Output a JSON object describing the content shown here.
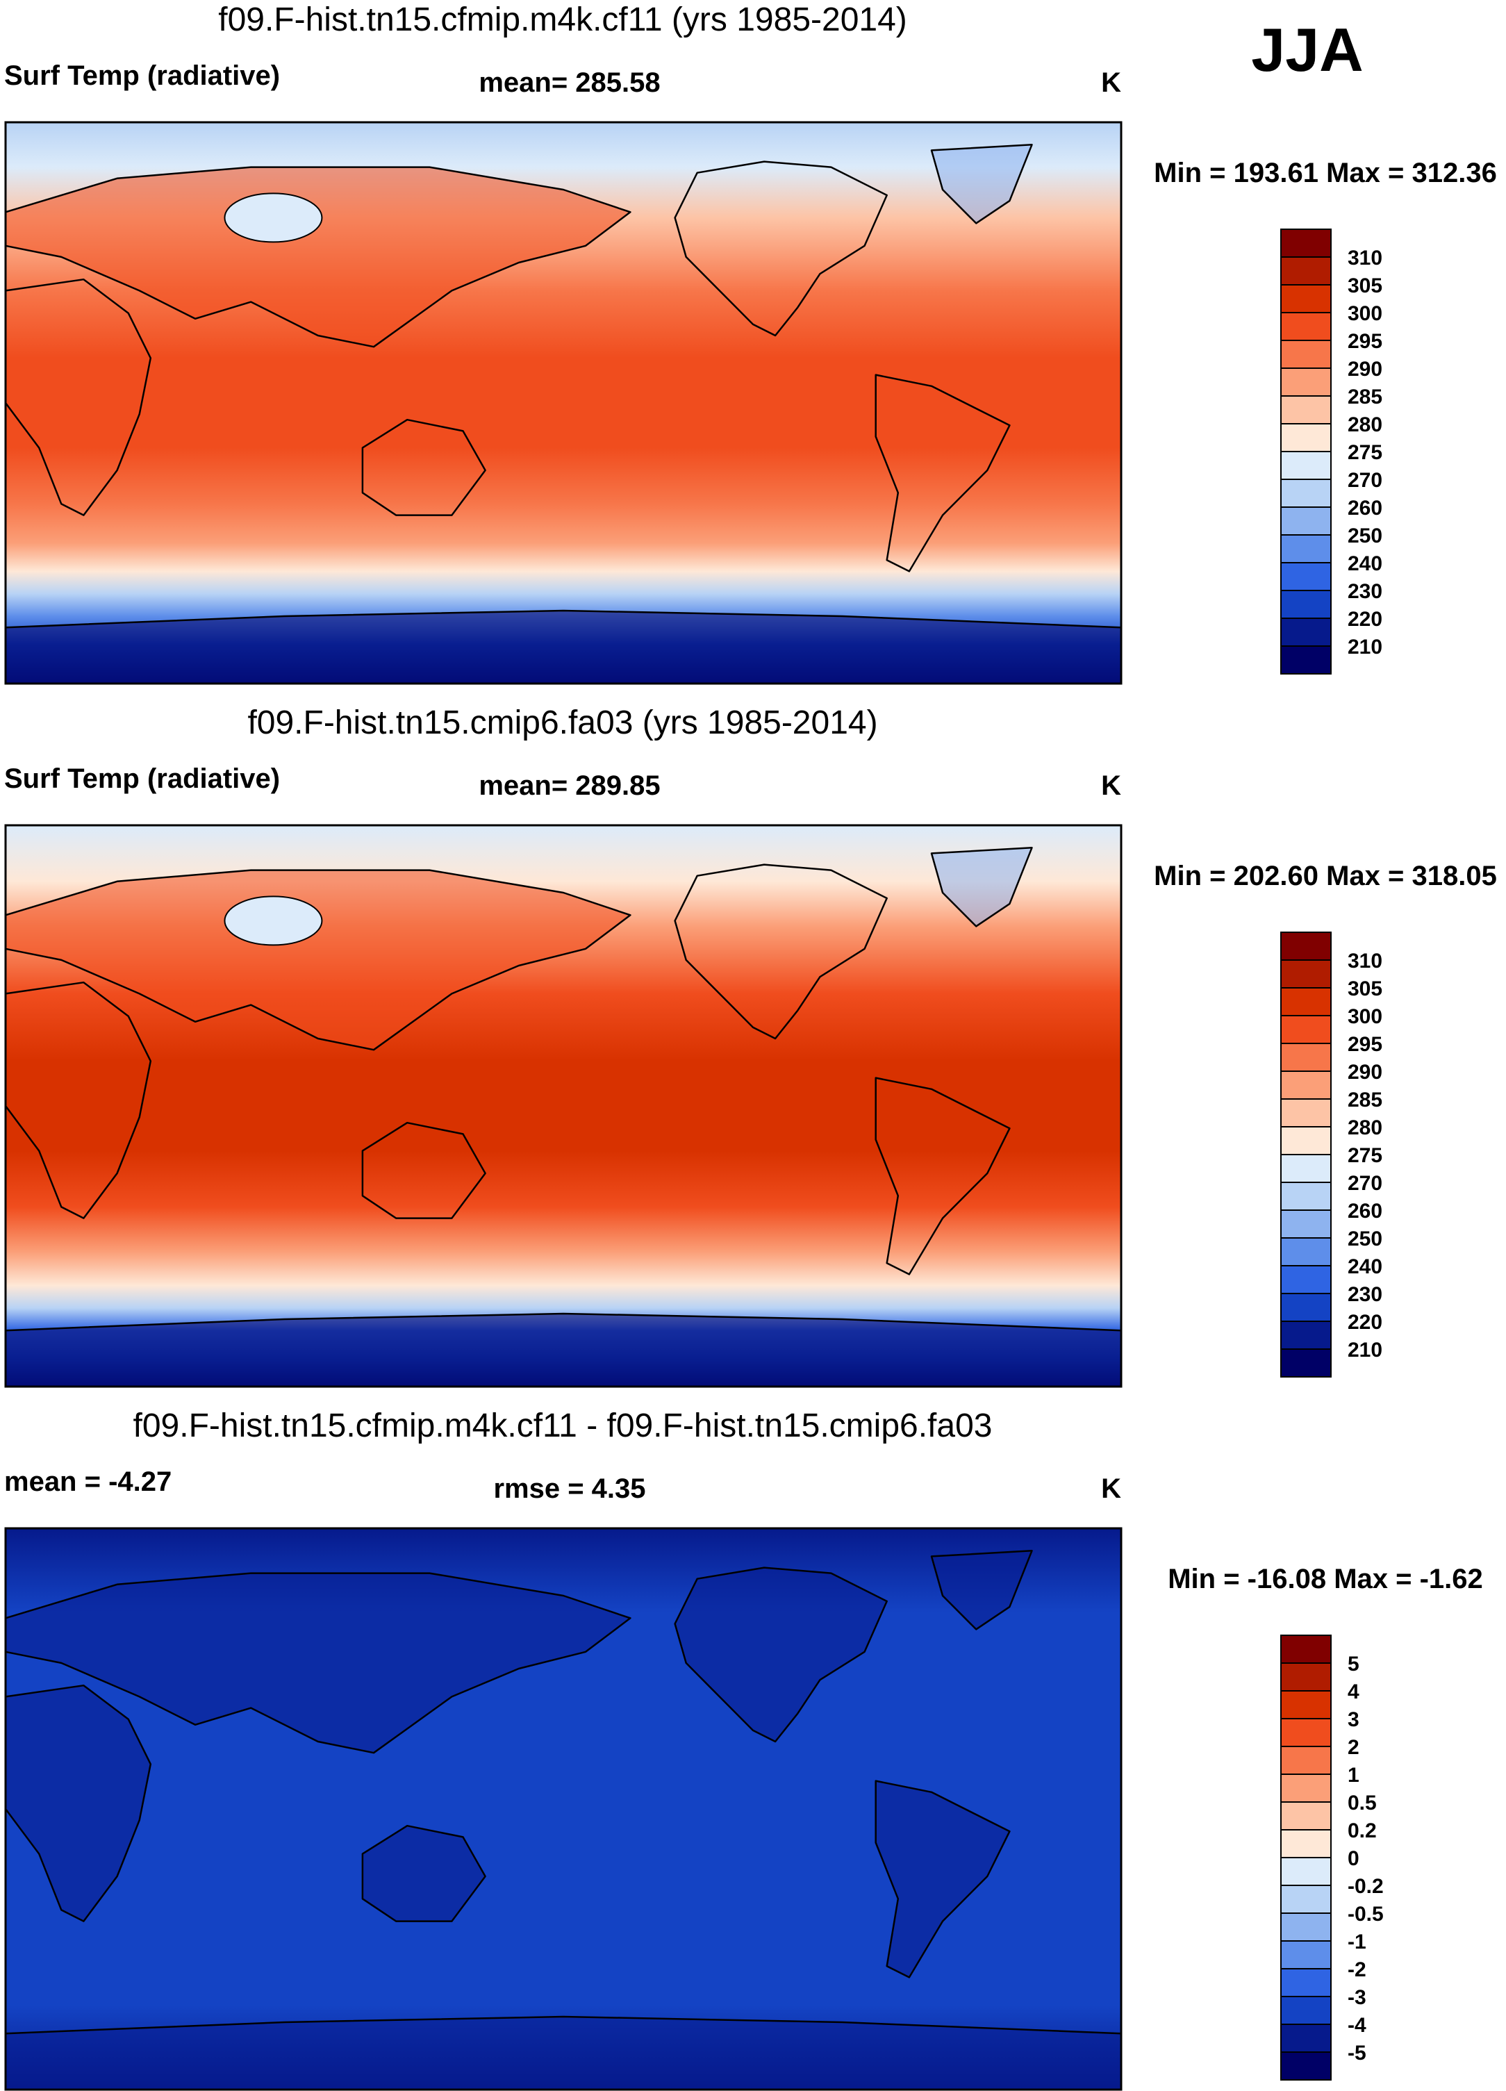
{
  "season": "JJA",
  "panels": [
    {
      "title": "f09.F-hist.tn15.cfmip.m4k.cf11 (yrs 1985-2014)",
      "left_label": "Surf Temp (radiative)",
      "center_label": "mean= 285.58",
      "units": "K",
      "minmax": "Min = 193.61 Max = 312.36",
      "scale": "abs",
      "palette": "abs",
      "legend": [
        "310",
        "305",
        "300",
        "295",
        "290",
        "285",
        "280",
        "275",
        "270",
        "260",
        "250",
        "240",
        "230",
        "220",
        "210"
      ]
    },
    {
      "title": "f09.F-hist.tn15.cmip6.fa03 (yrs 1985-2014)",
      "left_label": "Surf Temp (radiative)",
      "center_label": "mean= 289.85",
      "units": "K",
      "minmax": "Min = 202.60 Max = 318.05",
      "scale": "abs",
      "palette": "abs",
      "legend": [
        "310",
        "305",
        "300",
        "295",
        "290",
        "285",
        "280",
        "275",
        "270",
        "260",
        "250",
        "240",
        "230",
        "220",
        "210"
      ]
    },
    {
      "title": "f09.F-hist.tn15.cfmip.m4k.cf11 - f09.F-hist.tn15.cmip6.fa03",
      "left_label": "mean =  -4.27",
      "center_label": "rmse =   4.35",
      "units": "K",
      "minmax": "Min = -16.08 Max =  -1.62",
      "scale": "diff",
      "palette": "diff",
      "legend": [
        "5",
        "4",
        "3",
        "2",
        "1",
        "0.5",
        "0.2",
        "0",
        "-0.2",
        "-0.5",
        "-1",
        "-2",
        "-3",
        "-4",
        "-5"
      ]
    }
  ],
  "palettes": {
    "abs": [
      "#800000",
      "#b01c00",
      "#d83200",
      "#f04d1e",
      "#f7764a",
      "#fb9f78",
      "#fdc4a6",
      "#fee8d7",
      "#dcebfa",
      "#b8d3f5",
      "#8eb3ef",
      "#5e8eea",
      "#2f64e3",
      "#1443c4",
      "#061a8c",
      "#000066"
    ],
    "diff": [
      "#800000",
      "#b01c00",
      "#d83200",
      "#f04d1e",
      "#f7764a",
      "#fb9f78",
      "#fdc4a6",
      "#fee8d7",
      "#dcebfa",
      "#b8d3f5",
      "#8eb3ef",
      "#5e8eea",
      "#2f64e3",
      "#1443c4",
      "#061a8c",
      "#000066"
    ]
  },
  "chart_data": [
    {
      "type": "heatmap",
      "title": "f09.F-hist.tn15.cfmip.m4k.cf11 (yrs 1985-2014)",
      "variable": "Surf Temp (radiative)",
      "units": "K",
      "mean": 285.58,
      "min": 193.61,
      "max": 312.36,
      "contour_levels": [
        210,
        220,
        230,
        240,
        250,
        260,
        270,
        275,
        280,
        285,
        290,
        295,
        300,
        305,
        310
      ]
    },
    {
      "type": "heatmap",
      "title": "f09.F-hist.tn15.cmip6.fa03 (yrs 1985-2014)",
      "variable": "Surf Temp (radiative)",
      "units": "K",
      "mean": 289.85,
      "min": 202.6,
      "max": 318.05,
      "contour_levels": [
        210,
        220,
        230,
        240,
        250,
        260,
        270,
        275,
        280,
        285,
        290,
        295,
        300,
        305,
        310
      ]
    },
    {
      "type": "heatmap",
      "title": "f09.F-hist.tn15.cfmip.m4k.cf11 - f09.F-hist.tn15.cmip6.fa03",
      "units": "K",
      "mean": -4.27,
      "rmse": 4.35,
      "min": -16.08,
      "max": -1.62,
      "contour_levels": [
        -5,
        -4,
        -3,
        -2,
        -1,
        -0.5,
        -0.2,
        0,
        0.2,
        0.5,
        1,
        2,
        3,
        4,
        5
      ]
    }
  ]
}
